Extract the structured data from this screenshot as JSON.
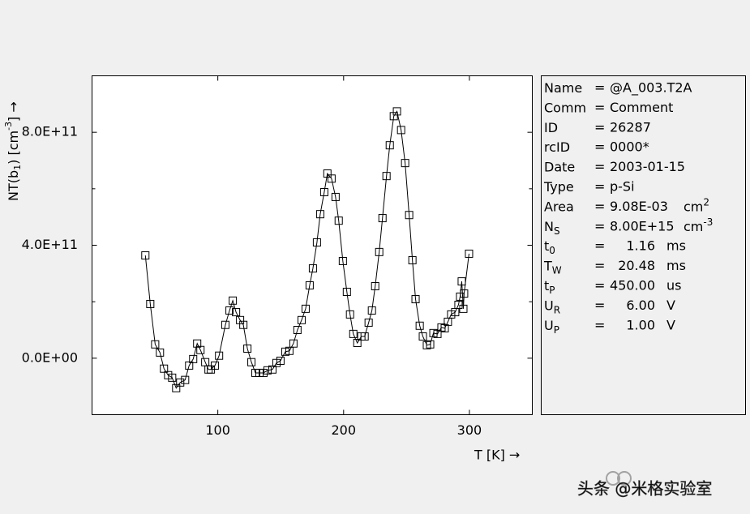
{
  "chart_data": {
    "type": "line",
    "xlabel": "T  [K]  →",
    "ylabel": {
      "text": "NT(b",
      "sub": "1",
      "rest": ")  [cm",
      "sup": "-3",
      "end": "]  →"
    },
    "xlim": [
      0,
      350
    ],
    "xticks": [
      100,
      200,
      300
    ],
    "ylim": [
      -200000000000.0,
      1000000000000.0
    ],
    "yticks": [
      {
        "value": 0,
        "label": "0.0E+00"
      },
      {
        "value": 400000000000.0,
        "label": "4.0E+11"
      },
      {
        "value": 800000000000.0,
        "label": "8.0E+11"
      }
    ],
    "yminorticks": [
      200000000000.0,
      600000000000.0
    ],
    "color": "#000000",
    "marker": "square",
    "x": [
      42.4,
      46.3,
      50.2,
      54,
      57.2,
      60.5,
      63.7,
      66.9,
      70.1,
      74,
      77.2,
      80.4,
      83.6,
      86.2,
      90,
      92.6,
      94.5,
      97.7,
      101,
      106,
      109.3,
      111.9,
      114.5,
      117.7,
      120.3,
      123.5,
      126.7,
      129.9,
      133.1,
      136.3,
      139.5,
      143.4,
      146.6,
      149.8,
      153.7,
      156.9,
      160.1,
      163.3,
      166.6,
      169.8,
      173,
      175.6,
      178.8,
      181.4,
      184.6,
      187.1,
      190.4,
      193.6,
      196.1,
      199.4,
      202.6,
      205.1,
      207.7,
      210.9,
      214.1,
      216.7,
      219.9,
      222.5,
      225.1,
      228.3,
      230.9,
      234.1,
      236.7,
      239.9,
      242.4,
      245.7,
      248.9,
      252.1,
      254.7,
      257.2,
      260.5,
      263,
      266.2,
      268.8,
      271.4,
      274.6,
      277.8,
      280.4,
      282.9,
      285.5,
      288.7,
      291.3,
      292.6,
      293.9,
      295.2,
      295.8,
      299.7
    ],
    "values": [
      364000000000.0,
      192000000000.0,
      49000000000.0,
      20000000000.0,
      -37000000000.0,
      -60000000000.0,
      -69000000000.0,
      -106000000000.0,
      -86000000000.0,
      -77000000000.0,
      -26000000000.0,
      -3000000000.0,
      52000000000.0,
      29000000000.0,
      -14000000000.0,
      -40000000000.0,
      -40000000000.0,
      -26000000000.0,
      9000000000.0,
      118000000000.0,
      169000000000.0,
      204000000000.0,
      163000000000.0,
      135000000000.0,
      118000000000.0,
      34000000000.0,
      -14000000000.0,
      -52000000000.0,
      -52000000000.0,
      -52000000000.0,
      -43000000000.0,
      -40000000000.0,
      -17000000000.0,
      -9000000000.0,
      23000000000.0,
      26000000000.0,
      52000000000.0,
      100000000000.0,
      135000000000.0,
      175000000000.0,
      258000000000.0,
      318000000000.0,
      410000000000.0,
      510000000000.0,
      588000000000.0,
      654000000000.0,
      636000000000.0,
      571000000000.0,
      487000000000.0,
      344000000000.0,
      235000000000.0,
      155000000000.0,
      86000000000.0,
      54000000000.0,
      77000000000.0,
      77000000000.0,
      126000000000.0,
      169000000000.0,
      255000000000.0,
      376000000000.0,
      496000000000.0,
      645000000000.0,
      754000000000.0,
      857000000000.0,
      874000000000.0,
      808000000000.0,
      691000000000.0,
      507000000000.0,
      347000000000.0,
      209000000000.0,
      115000000000.0,
      77000000000.0,
      46000000000.0,
      49000000000.0,
      89000000000.0,
      86000000000.0,
      109000000000.0,
      106000000000.0,
      129000000000.0,
      155000000000.0,
      163000000000.0,
      189000000000.0,
      218000000000.0,
      272000000000.0,
      175000000000.0,
      229000000000.0,
      370000000000.0
    ]
  },
  "info": {
    "rows": [
      {
        "key": "Name",
        "sep": "=",
        "value": "@A_003.T2A"
      },
      {
        "key": "Comm",
        "sep": "=",
        "value": "Comment"
      },
      {
        "key": "ID",
        "sep": "=",
        "value": "26287"
      },
      {
        "key": "rcID",
        "sep": "=",
        "value": "0000*"
      },
      {
        "key": "Date",
        "sep": "=",
        "value": "2003-01-15"
      },
      {
        "key": "Type",
        "sep": "=",
        "value": "p-Si"
      },
      {
        "key": "Area",
        "sep": "=",
        "value": "9.08E-03",
        "unit": "cm",
        "unit_sup": "2"
      },
      {
        "key": "N",
        "key_sub": "S",
        "sep": "=",
        "value": "8.00E+15",
        "unit": "cm",
        "unit_sup": "-3"
      },
      {
        "key": "t",
        "key_sub": "0",
        "sep": "=",
        "value": "1.16",
        "unit": "ms"
      },
      {
        "key": "T",
        "key_sub": "W",
        "sep": "=",
        "value": "20.48",
        "unit": "ms"
      },
      {
        "key": "t",
        "key_sub": "P",
        "sep": "=",
        "value": "450.00",
        "unit": "us"
      },
      {
        "key": "U",
        "key_sub": "R",
        "sep": "=",
        "value": "6.00",
        "unit": "V"
      },
      {
        "key": "U",
        "key_sub": "P",
        "sep": "=",
        "value": "1.00",
        "unit": "V"
      }
    ]
  },
  "watermark": "头条 @米格实验室"
}
